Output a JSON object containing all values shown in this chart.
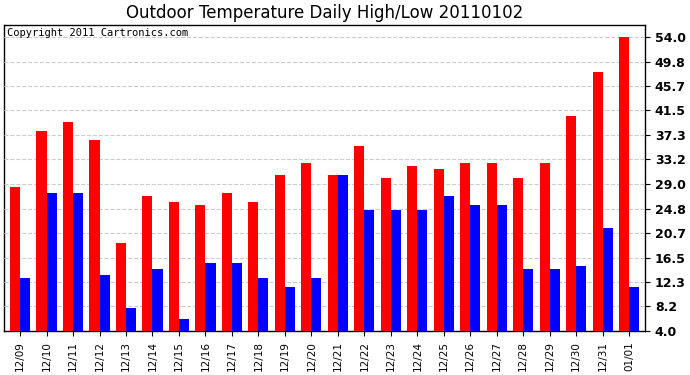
{
  "title": "Outdoor Temperature Daily High/Low 20110102",
  "copyright": "Copyright 2011 Cartronics.com",
  "dates": [
    "12/09",
    "12/10",
    "12/11",
    "12/12",
    "12/13",
    "12/14",
    "12/15",
    "12/16",
    "12/17",
    "12/18",
    "12/19",
    "12/20",
    "12/21",
    "12/22",
    "12/23",
    "12/24",
    "12/25",
    "12/26",
    "12/27",
    "12/28",
    "12/29",
    "12/30",
    "12/31",
    "01/01"
  ],
  "highs": [
    28.5,
    38.0,
    39.5,
    36.5,
    19.0,
    27.0,
    26.0,
    25.5,
    27.5,
    26.0,
    30.5,
    32.5,
    30.5,
    35.5,
    30.0,
    32.0,
    31.5,
    32.5,
    32.5,
    30.0,
    32.5,
    40.5,
    48.0,
    54.0
  ],
  "lows": [
    13.0,
    27.5,
    27.5,
    13.5,
    8.0,
    14.5,
    6.0,
    15.5,
    15.5,
    13.0,
    11.5,
    13.0,
    30.5,
    24.5,
    24.5,
    24.5,
    27.0,
    25.5,
    25.5,
    14.5,
    14.5,
    15.0,
    21.5,
    11.5
  ],
  "high_color": "#ff0000",
  "low_color": "#0000ff",
  "bar_width": 0.38,
  "ylim": [
    4.0,
    56.0
  ],
  "yticks": [
    4.0,
    8.2,
    12.3,
    16.5,
    20.7,
    24.8,
    29.0,
    33.2,
    37.3,
    41.5,
    45.7,
    49.8,
    54.0
  ],
  "background_color": "#ffffff",
  "plot_bg_color": "#ffffff",
  "grid_color": "#cccccc",
  "title_fontsize": 12,
  "copyright_fontsize": 7.5,
  "tick_fontsize": 7.5,
  "ytick_fontsize": 9
}
